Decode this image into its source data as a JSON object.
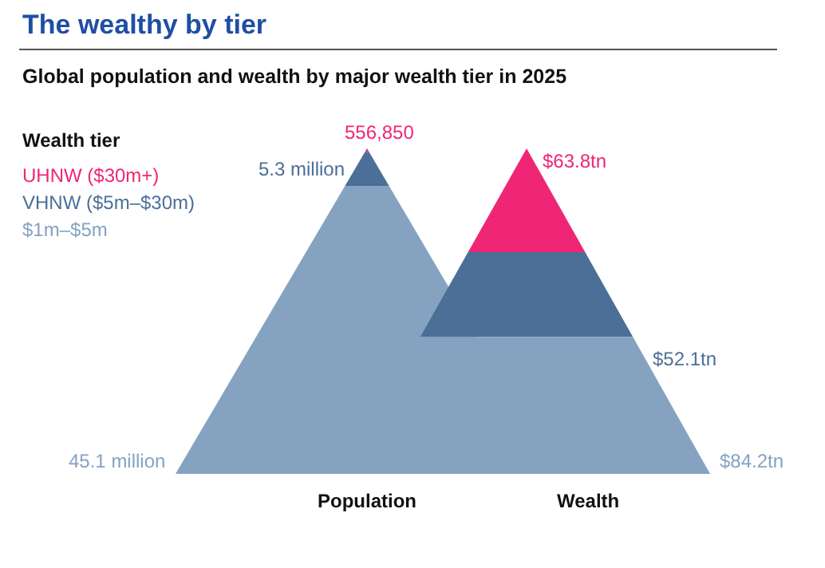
{
  "chart_data": {
    "type": "other",
    "title": "The wealthy by tier",
    "subtitle": "Global population and wealth by major wealth tier in 2025",
    "legend_title": "Wealth tier",
    "categories": [
      "Population",
      "Wealth"
    ],
    "series": [
      {
        "name": "UHNW ($30m+)",
        "color": "#ef2676",
        "values": [
          556850,
          63.8
        ],
        "value_labels": [
          "556,850",
          "$63.8tn"
        ]
      },
      {
        "name": "VHNW ($5m–$30m)",
        "color": "#4c6f97",
        "values": [
          5300000,
          52.1
        ],
        "value_labels": [
          "5.3 million",
          "$52.1tn"
        ]
      },
      {
        "name": "$1m–$5m",
        "color": "#85a3c1",
        "values": [
          45100000,
          84.2
        ],
        "value_labels": [
          "45.1 million",
          "$84.2tn"
        ]
      }
    ]
  }
}
